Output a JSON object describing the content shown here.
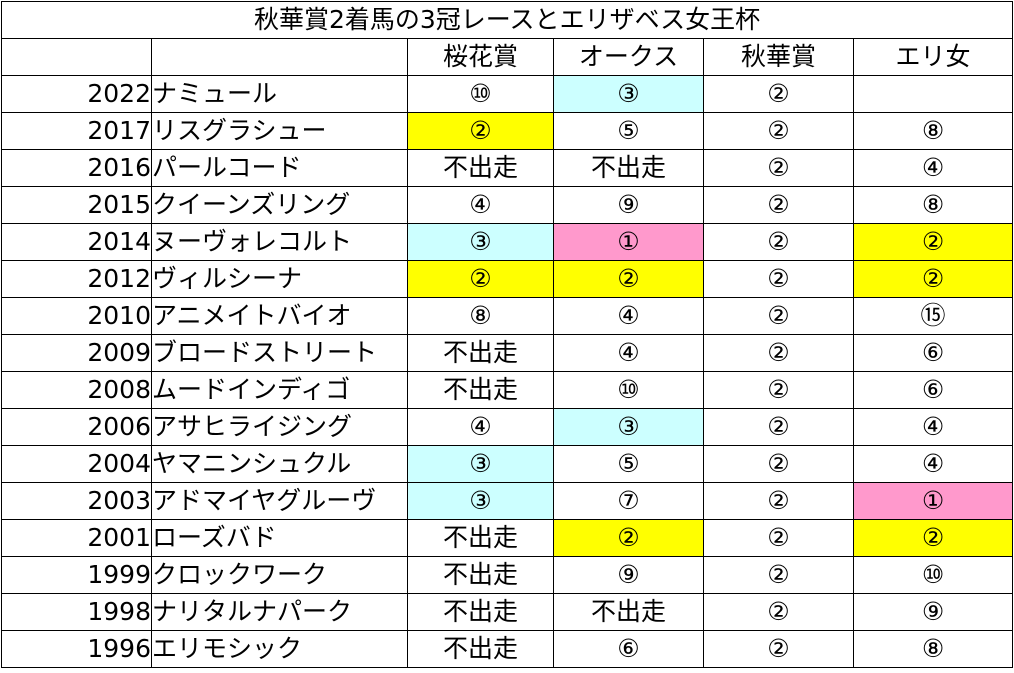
{
  "title": "秋華賞2着馬の3冠レースとエリザベス女王杯",
  "headers": [
    "",
    "",
    "桜花賞",
    "オークス",
    "秋華賞",
    "エリ女"
  ],
  "colors": {
    "yellow": "#ffff00",
    "cyan": "#ccffff",
    "pink": "#ff99cc"
  },
  "rows": [
    {
      "year": "2022",
      "name": "ナミュール",
      "results": [
        "⑩",
        "③",
        "②",
        ""
      ],
      "colors": [
        "",
        "cyan",
        "",
        ""
      ]
    },
    {
      "year": "2017",
      "name": "リスグラシュー",
      "results": [
        "②",
        "⑤",
        "②",
        "⑧"
      ],
      "colors": [
        "yellow",
        "",
        "",
        ""
      ]
    },
    {
      "year": "2016",
      "name": "パールコード",
      "results": [
        "不出走",
        "不出走",
        "②",
        "④"
      ],
      "colors": [
        "",
        "",
        "",
        ""
      ]
    },
    {
      "year": "2015",
      "name": "クイーンズリング",
      "results": [
        "④",
        "⑨",
        "②",
        "⑧"
      ],
      "colors": [
        "",
        "",
        "",
        ""
      ]
    },
    {
      "year": "2014",
      "name": "ヌーヴォレコルト",
      "results": [
        "③",
        "①",
        "②",
        "②"
      ],
      "colors": [
        "cyan",
        "pink",
        "",
        "yellow"
      ]
    },
    {
      "year": "2012",
      "name": "ヴィルシーナ",
      "results": [
        "②",
        "②",
        "②",
        "②"
      ],
      "colors": [
        "yellow",
        "yellow",
        "",
        "yellow"
      ]
    },
    {
      "year": "2010",
      "name": "アニメイトバイオ",
      "results": [
        "⑧",
        "④",
        "②",
        "⑮"
      ],
      "colors": [
        "",
        "",
        "",
        ""
      ]
    },
    {
      "year": "2009",
      "name": "ブロードストリート",
      "results": [
        "不出走",
        "④",
        "②",
        "⑥"
      ],
      "colors": [
        "",
        "",
        "",
        ""
      ]
    },
    {
      "year": "2008",
      "name": "ムードインディゴ",
      "results": [
        "不出走",
        "⑩",
        "②",
        "⑥"
      ],
      "colors": [
        "",
        "",
        "",
        ""
      ]
    },
    {
      "year": "2006",
      "name": "アサヒライジング",
      "results": [
        "④",
        "③",
        "②",
        "④"
      ],
      "colors": [
        "",
        "cyan",
        "",
        ""
      ]
    },
    {
      "year": "2004",
      "name": "ヤマニンシュクル",
      "results": [
        "③",
        "⑤",
        "②",
        "④"
      ],
      "colors": [
        "cyan",
        "",
        "",
        ""
      ]
    },
    {
      "year": "2003",
      "name": "アドマイヤグルーヴ",
      "results": [
        "③",
        "⑦",
        "②",
        "①"
      ],
      "colors": [
        "cyan",
        "",
        "",
        "pink"
      ]
    },
    {
      "year": "2001",
      "name": "ローズバド",
      "results": [
        "不出走",
        "②",
        "②",
        "②"
      ],
      "colors": [
        "",
        "yellow",
        "",
        "yellow"
      ]
    },
    {
      "year": "1999",
      "name": "クロックワーク",
      "results": [
        "不出走",
        "⑨",
        "②",
        "⑩"
      ],
      "colors": [
        "",
        "",
        "",
        ""
      ]
    },
    {
      "year": "1998",
      "name": "ナリタルナパーク",
      "results": [
        "不出走",
        "不出走",
        "②",
        "⑨"
      ],
      "colors": [
        "",
        "",
        "",
        ""
      ]
    },
    {
      "year": "1996",
      "name": "エリモシック",
      "results": [
        "不出走",
        "⑥",
        "②",
        "⑧"
      ],
      "colors": [
        "",
        "",
        "",
        ""
      ]
    }
  ]
}
